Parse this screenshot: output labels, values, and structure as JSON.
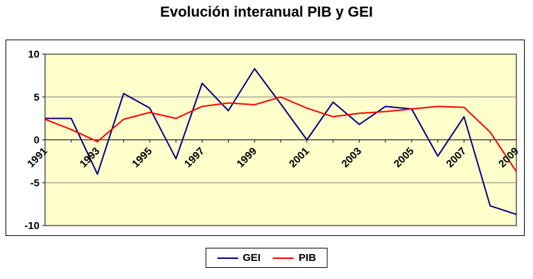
{
  "title": "Evolución interanual PIB y GEI",
  "chart_data": {
    "type": "line",
    "x": [
      "1991",
      "1992",
      "1993",
      "1994",
      "1995",
      "1996",
      "1997",
      "1998",
      "1999",
      "2000",
      "2001",
      "2002",
      "2003",
      "2004",
      "2005",
      "2006",
      "2007",
      "2008",
      "2009"
    ],
    "x_label_every": 2,
    "x_tick_labels": [
      "1991",
      "1993",
      "1995",
      "1997",
      "1999",
      "2001",
      "2003",
      "2005",
      "2007",
      "2009"
    ],
    "ylim": [
      -10,
      10
    ],
    "yticks": [
      10,
      5,
      0,
      -5,
      -10
    ],
    "grid": true,
    "legend_position": "bottom",
    "plot_bg": "#FFFFCC",
    "grid_color": "#808080",
    "axis_color": "#000000",
    "series": [
      {
        "name": "GEI",
        "color": "#000080",
        "values": [
          2.5,
          2.5,
          -4.0,
          5.4,
          3.7,
          -2.2,
          6.6,
          3.4,
          8.3,
          4.2,
          0.0,
          4.4,
          1.8,
          3.9,
          3.6,
          -1.9,
          2.7,
          -7.7,
          -8.7
        ]
      },
      {
        "name": "PIB",
        "color": "#FF0000",
        "values": [
          2.4,
          1.2,
          -0.2,
          2.4,
          3.2,
          2.5,
          3.9,
          4.3,
          4.1,
          5.0,
          3.7,
          2.7,
          3.1,
          3.3,
          3.6,
          3.9,
          3.8,
          0.9,
          -3.7
        ]
      }
    ]
  }
}
